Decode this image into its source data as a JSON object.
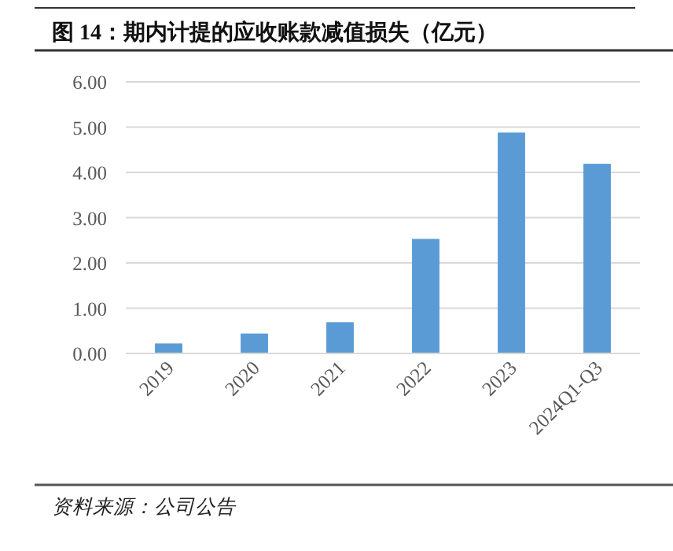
{
  "chart_data": {
    "type": "bar",
    "title": "图 14：期内计提的应收账款减值损失（亿元）",
    "categories": [
      "2019",
      "2020",
      "2021",
      "2022",
      "2023",
      "2024Q1-Q3"
    ],
    "values": [
      0.22,
      0.44,
      0.69,
      2.53,
      4.88,
      4.19
    ],
    "color": "#5b9bd5",
    "ylim": [
      0,
      6
    ],
    "yticks": [
      {
        "value": 0,
        "label": "0.00"
      },
      {
        "value": 1,
        "label": "1.00"
      },
      {
        "value": 2,
        "label": "2.00"
      },
      {
        "value": 3,
        "label": "3.00"
      },
      {
        "value": 4,
        "label": "4.00"
      },
      {
        "value": 5,
        "label": "5.00"
      },
      {
        "value": 6,
        "label": "6.00"
      }
    ],
    "grid": "y",
    "annotations": [
      "资料来源：公司公告"
    ]
  }
}
